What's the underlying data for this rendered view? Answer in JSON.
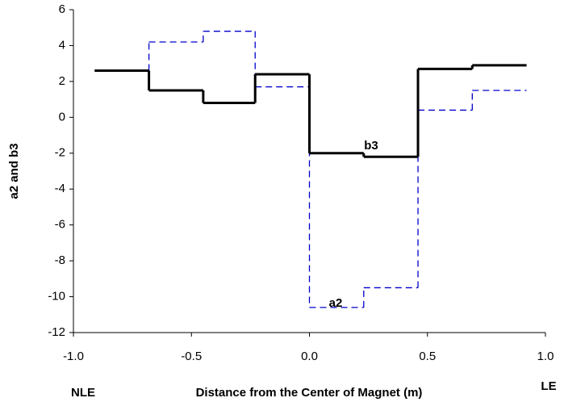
{
  "chart_data": {
    "type": "step",
    "x_label": "Distance from the Center of Magnet (m)",
    "y_label": "a2 and b3",
    "left_end_label": "NLE",
    "right_end_label": "LE",
    "x_edges": [
      -0.91,
      -0.68,
      -0.45,
      -0.23,
      0.0,
      0.23,
      0.46,
      0.69,
      0.92
    ],
    "series": [
      {
        "name": "b3",
        "color": "#000000",
        "dash": false,
        "values": [
          2.6,
          1.5,
          0.8,
          2.4,
          -2.0,
          -2.2,
          2.7,
          2.9
        ]
      },
      {
        "name": "a2",
        "color": "#0000cc",
        "dash": true,
        "values": [
          2.6,
          4.2,
          4.8,
          1.7,
          -10.6,
          -9.5,
          0.4,
          1.5
        ]
      }
    ],
    "xlim": [
      -1.0,
      1.0
    ],
    "xticks": [
      {
        "value": -1.0,
        "label": "-1.0"
      },
      -0.5,
      {
        "value": 0.0,
        "label": "0.0"
      },
      0.5,
      {
        "value": 1.0,
        "label": "1.0"
      }
    ],
    "ylim": [
      -12,
      6
    ],
    "yticks": [
      -12,
      -10,
      -8,
      -6,
      -4,
      -2,
      0,
      2,
      4,
      6
    ]
  }
}
